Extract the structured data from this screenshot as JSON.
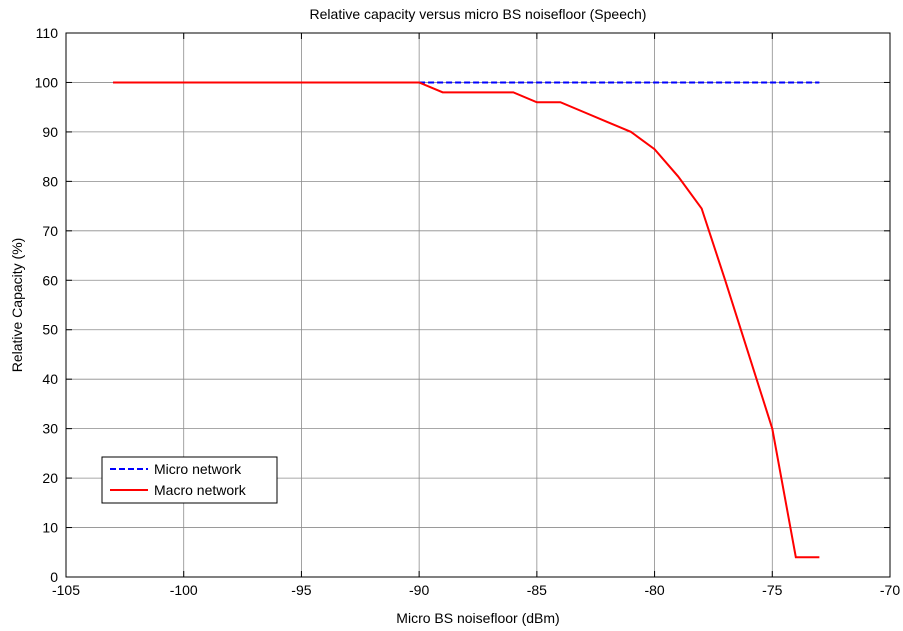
{
  "chart_data": {
    "type": "line",
    "title": "Relative capacity versus micro BS noisefloor (Speech)",
    "xlabel": "Micro BS noisefloor (dBm)",
    "ylabel": "Relative Capacity (%)",
    "xlim": [
      -105,
      -70
    ],
    "ylim": [
      0,
      110
    ],
    "xticks": [
      -105,
      -100,
      -95,
      -90,
      -85,
      -80,
      -75,
      -70
    ],
    "yticks": [
      0,
      10,
      20,
      30,
      40,
      50,
      60,
      70,
      80,
      90,
      100,
      110
    ],
    "grid": true,
    "legend_position": "bottom-left",
    "series": [
      {
        "name": "Micro network",
        "color": "#0000ff",
        "style": "dashed",
        "x": [
          -103,
          -73
        ],
        "y": [
          100,
          100
        ]
      },
      {
        "name": "Macro network",
        "color": "#ff0000",
        "style": "solid",
        "x": [
          -103,
          -90,
          -89,
          -88,
          -87,
          -86,
          -85,
          -84,
          -83,
          -82,
          -81,
          -80,
          -79,
          -78,
          -77,
          -76,
          -75,
          -74,
          -73
        ],
        "y": [
          100,
          100,
          98,
          98,
          98,
          98,
          96,
          96,
          94,
          92,
          90,
          86.5,
          81,
          74.5,
          60,
          45,
          30,
          4,
          4
        ]
      }
    ]
  }
}
